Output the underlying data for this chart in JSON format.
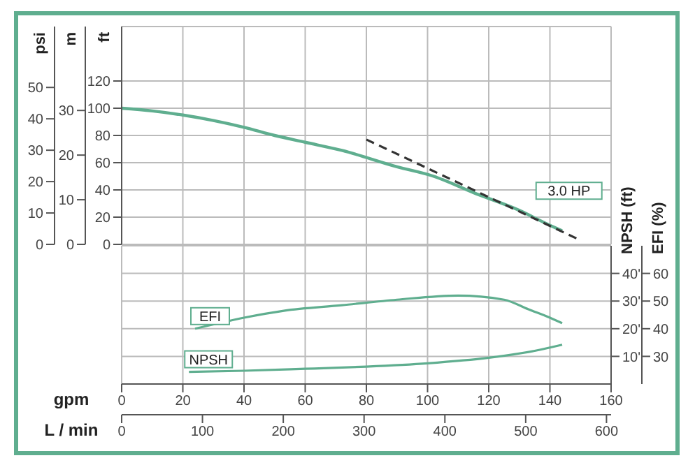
{
  "chart_data": [
    {
      "type": "line",
      "ylabel": "ft",
      "y2label": "m",
      "y3label": "psi",
      "tick_labels": "y",
      "xlim": [
        0,
        160
      ],
      "xticks": [
        0,
        20,
        40,
        60,
        80,
        100,
        120,
        140,
        160
      ],
      "ylim": [
        0,
        160
      ],
      "yticks": [
        0,
        20,
        40,
        60,
        80,
        100,
        120
      ],
      "y2lim": [
        0,
        48.8
      ],
      "y2ticks": [
        0,
        10,
        20,
        30
      ],
      "y3lim": [
        0,
        69.4
      ],
      "y3ticks": [
        0,
        10,
        20,
        30,
        40,
        50
      ],
      "grid": true,
      "series": [
        {
          "name": "3.0 HP",
          "color": "#5fae8f",
          "x": [
            0,
            10,
            20,
            30,
            40,
            50,
            60,
            72,
            90,
            102,
            115,
            130,
            140,
            144
          ],
          "values": [
            100,
            98,
            95,
            91,
            86,
            80,
            75,
            69,
            57,
            50,
            38,
            25,
            14,
            10
          ]
        },
        {
          "color": "#333333",
          "line_style": "dashed",
          "x": [
            80,
            150
          ],
          "values": [
            77,
            3
          ]
        }
      ]
    },
    {
      "type": "line",
      "xlabel": "gpm",
      "x2label": "L / min",
      "ylabel": "NPSH (ft)",
      "y2label": "EFI (%)",
      "xlim": [
        0,
        160
      ],
      "xticks": [
        0,
        20,
        40,
        60,
        80,
        100,
        120,
        140,
        160
      ],
      "x2lim": [
        0,
        605.7
      ],
      "x2ticks": [
        0,
        100,
        200,
        300,
        400,
        500,
        600
      ],
      "ylim": [
        0,
        50
      ],
      "yticks": [
        {
          "value": 10,
          "label": "10'"
        },
        {
          "value": 20,
          "label": "20'"
        },
        {
          "value": 30,
          "label": "30'"
        },
        {
          "value": 40,
          "label": "40'"
        }
      ],
      "y2lim": [
        20,
        70
      ],
      "y2ticks": [
        30,
        40,
        50,
        60
      ],
      "grid": true,
      "series": [
        {
          "name": "EFI",
          "color": "#5fae8f",
          "axis": "y2",
          "x": [
            24,
            40,
            53,
            72,
            90,
            110,
            125,
            133,
            140,
            144
          ],
          "values": [
            40,
            44,
            46.5,
            48.5,
            50.5,
            52,
            50.5,
            47,
            44,
            42
          ]
        },
        {
          "name": "NPSH",
          "color": "#5fae8f",
          "axis": "y",
          "x": [
            22,
            40,
            60,
            80,
            100,
            120,
            135,
            144
          ],
          "values": [
            4.4,
            4.8,
            5.5,
            6.3,
            7.5,
            9.5,
            12,
            14.2
          ]
        }
      ]
    }
  ]
}
